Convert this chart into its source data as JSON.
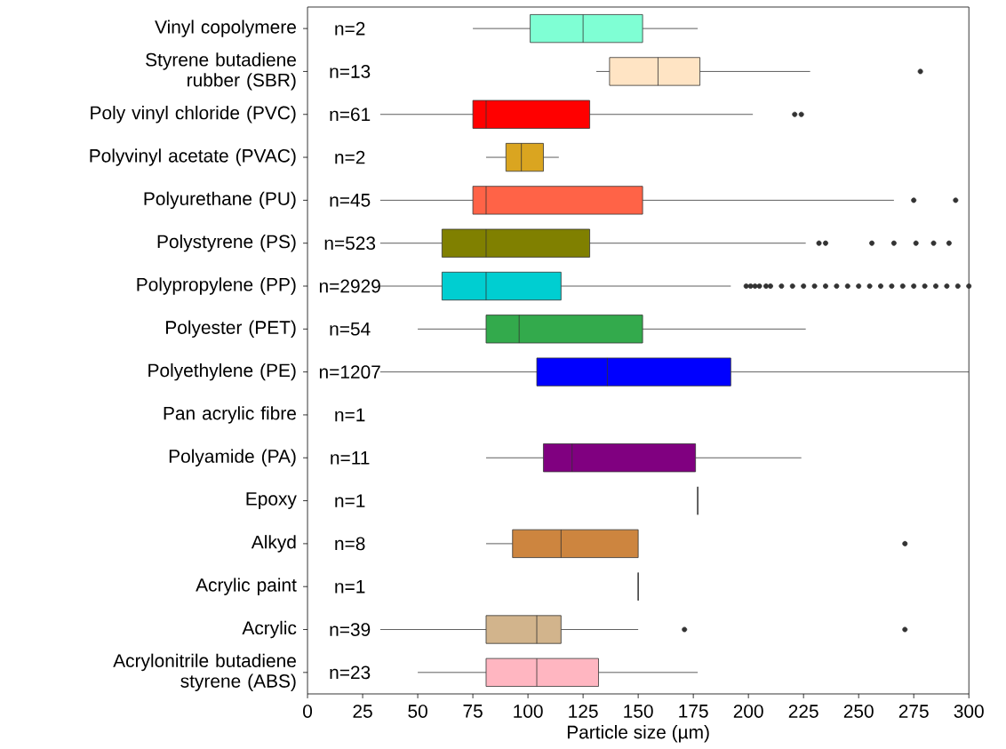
{
  "chart_data": {
    "type": "box",
    "orientation": "horizontal",
    "xlabel": "Particle size (µm)",
    "categories": [
      "Vinyl copolymere",
      "Styrene butadiene rubber (SBR)",
      "Poly vinyl chloride (PVC)",
      "Polyvinyl acetate (PVAC)",
      "Polyurethane (PU)",
      "Polystyrene (PS)",
      "Polypropylene (PP)",
      "Polyester (PET)",
      "Polyethylene (PE)",
      "Pan acrylic fibre",
      "Polyamide (PA)",
      "Epoxy",
      "Alkyd",
      "Acrylic paint",
      "Acrylic",
      "Acrylonitrile butadiene styrene (ABS)"
    ],
    "colors": [
      "#7fffd4",
      "#ffe4c4",
      "#ff0000",
      "#daa520",
      "#ff6347",
      "#808000",
      "#00ced1",
      "#33aa4c",
      "#0000ff",
      null,
      "#800080",
      "#333333",
      "#cd853f",
      "#333333",
      "#d2b48c",
      "#ffb6c1"
    ],
    "boxes": [
      {
        "low": 75,
        "q1": 101,
        "median": 125,
        "q3": 152,
        "high": 177
      },
      {
        "low": 131,
        "q1": 137,
        "median": 159,
        "q3": 178,
        "high": 228,
        "outliers": [
          278
        ]
      },
      {
        "low": 33,
        "q1": 75,
        "median": 81,
        "q3": 128,
        "high": 202,
        "outliers": [
          221,
          224
        ]
      },
      {
        "low": 81,
        "q1": 90,
        "median": 97,
        "q3": 107,
        "high": 114
      },
      {
        "low": 33,
        "q1": 75,
        "median": 81,
        "q3": 152,
        "high": 266,
        "outliers": [
          275,
          294
        ]
      },
      {
        "low": 33,
        "q1": 61,
        "median": 81,
        "q3": 128,
        "high": 226,
        "outliers": [
          232,
          235,
          256,
          266,
          276,
          284,
          291
        ]
      },
      {
        "low": 33,
        "q1": 61,
        "median": 81,
        "q3": 115,
        "high": 192,
        "outliers": [
          199,
          201,
          203,
          205,
          208,
          210,
          215,
          220,
          225,
          230,
          235,
          240,
          245,
          250,
          255,
          260,
          265,
          270,
          275,
          280,
          285,
          290,
          295,
          300
        ]
      },
      {
        "low": 50,
        "q1": 81,
        "median": 96,
        "q3": 152,
        "high": 226
      },
      {
        "low": 33,
        "q1": 104,
        "median": 136,
        "q3": 192,
        "high": 300
      },
      null,
      {
        "low": 81,
        "q1": 107,
        "median": 120,
        "q3": 176,
        "high": 224
      },
      {
        "low": 177,
        "q1": 177,
        "median": 177,
        "q3": 177,
        "high": 177
      },
      {
        "low": 81,
        "q1": 93,
        "median": 115,
        "q3": 150,
        "high": 150,
        "outliers": [
          271
        ]
      },
      {
        "low": 150,
        "q1": 150,
        "median": 150,
        "q3": 150,
        "high": 150
      },
      {
        "low": 33,
        "q1": 81,
        "median": 104,
        "q3": 115,
        "high": 150,
        "outliers": [
          171,
          271
        ]
      },
      {
        "low": 50,
        "q1": 81,
        "median": 104,
        "q3": 132,
        "high": 177
      }
    ],
    "xlim": [
      0,
      300
    ],
    "xticks": [
      0,
      25,
      50,
      75,
      100,
      125,
      150,
      175,
      200,
      225,
      250,
      275,
      300
    ],
    "annotations": [
      "n=2",
      "n=13",
      "n=61",
      "n=2",
      "n=45",
      "n=523",
      "n=2929",
      "n=54",
      "n=1207",
      "n=1",
      "n=11",
      "n=1",
      "n=8",
      "n=1",
      "n=39",
      "n=23"
    ]
  }
}
